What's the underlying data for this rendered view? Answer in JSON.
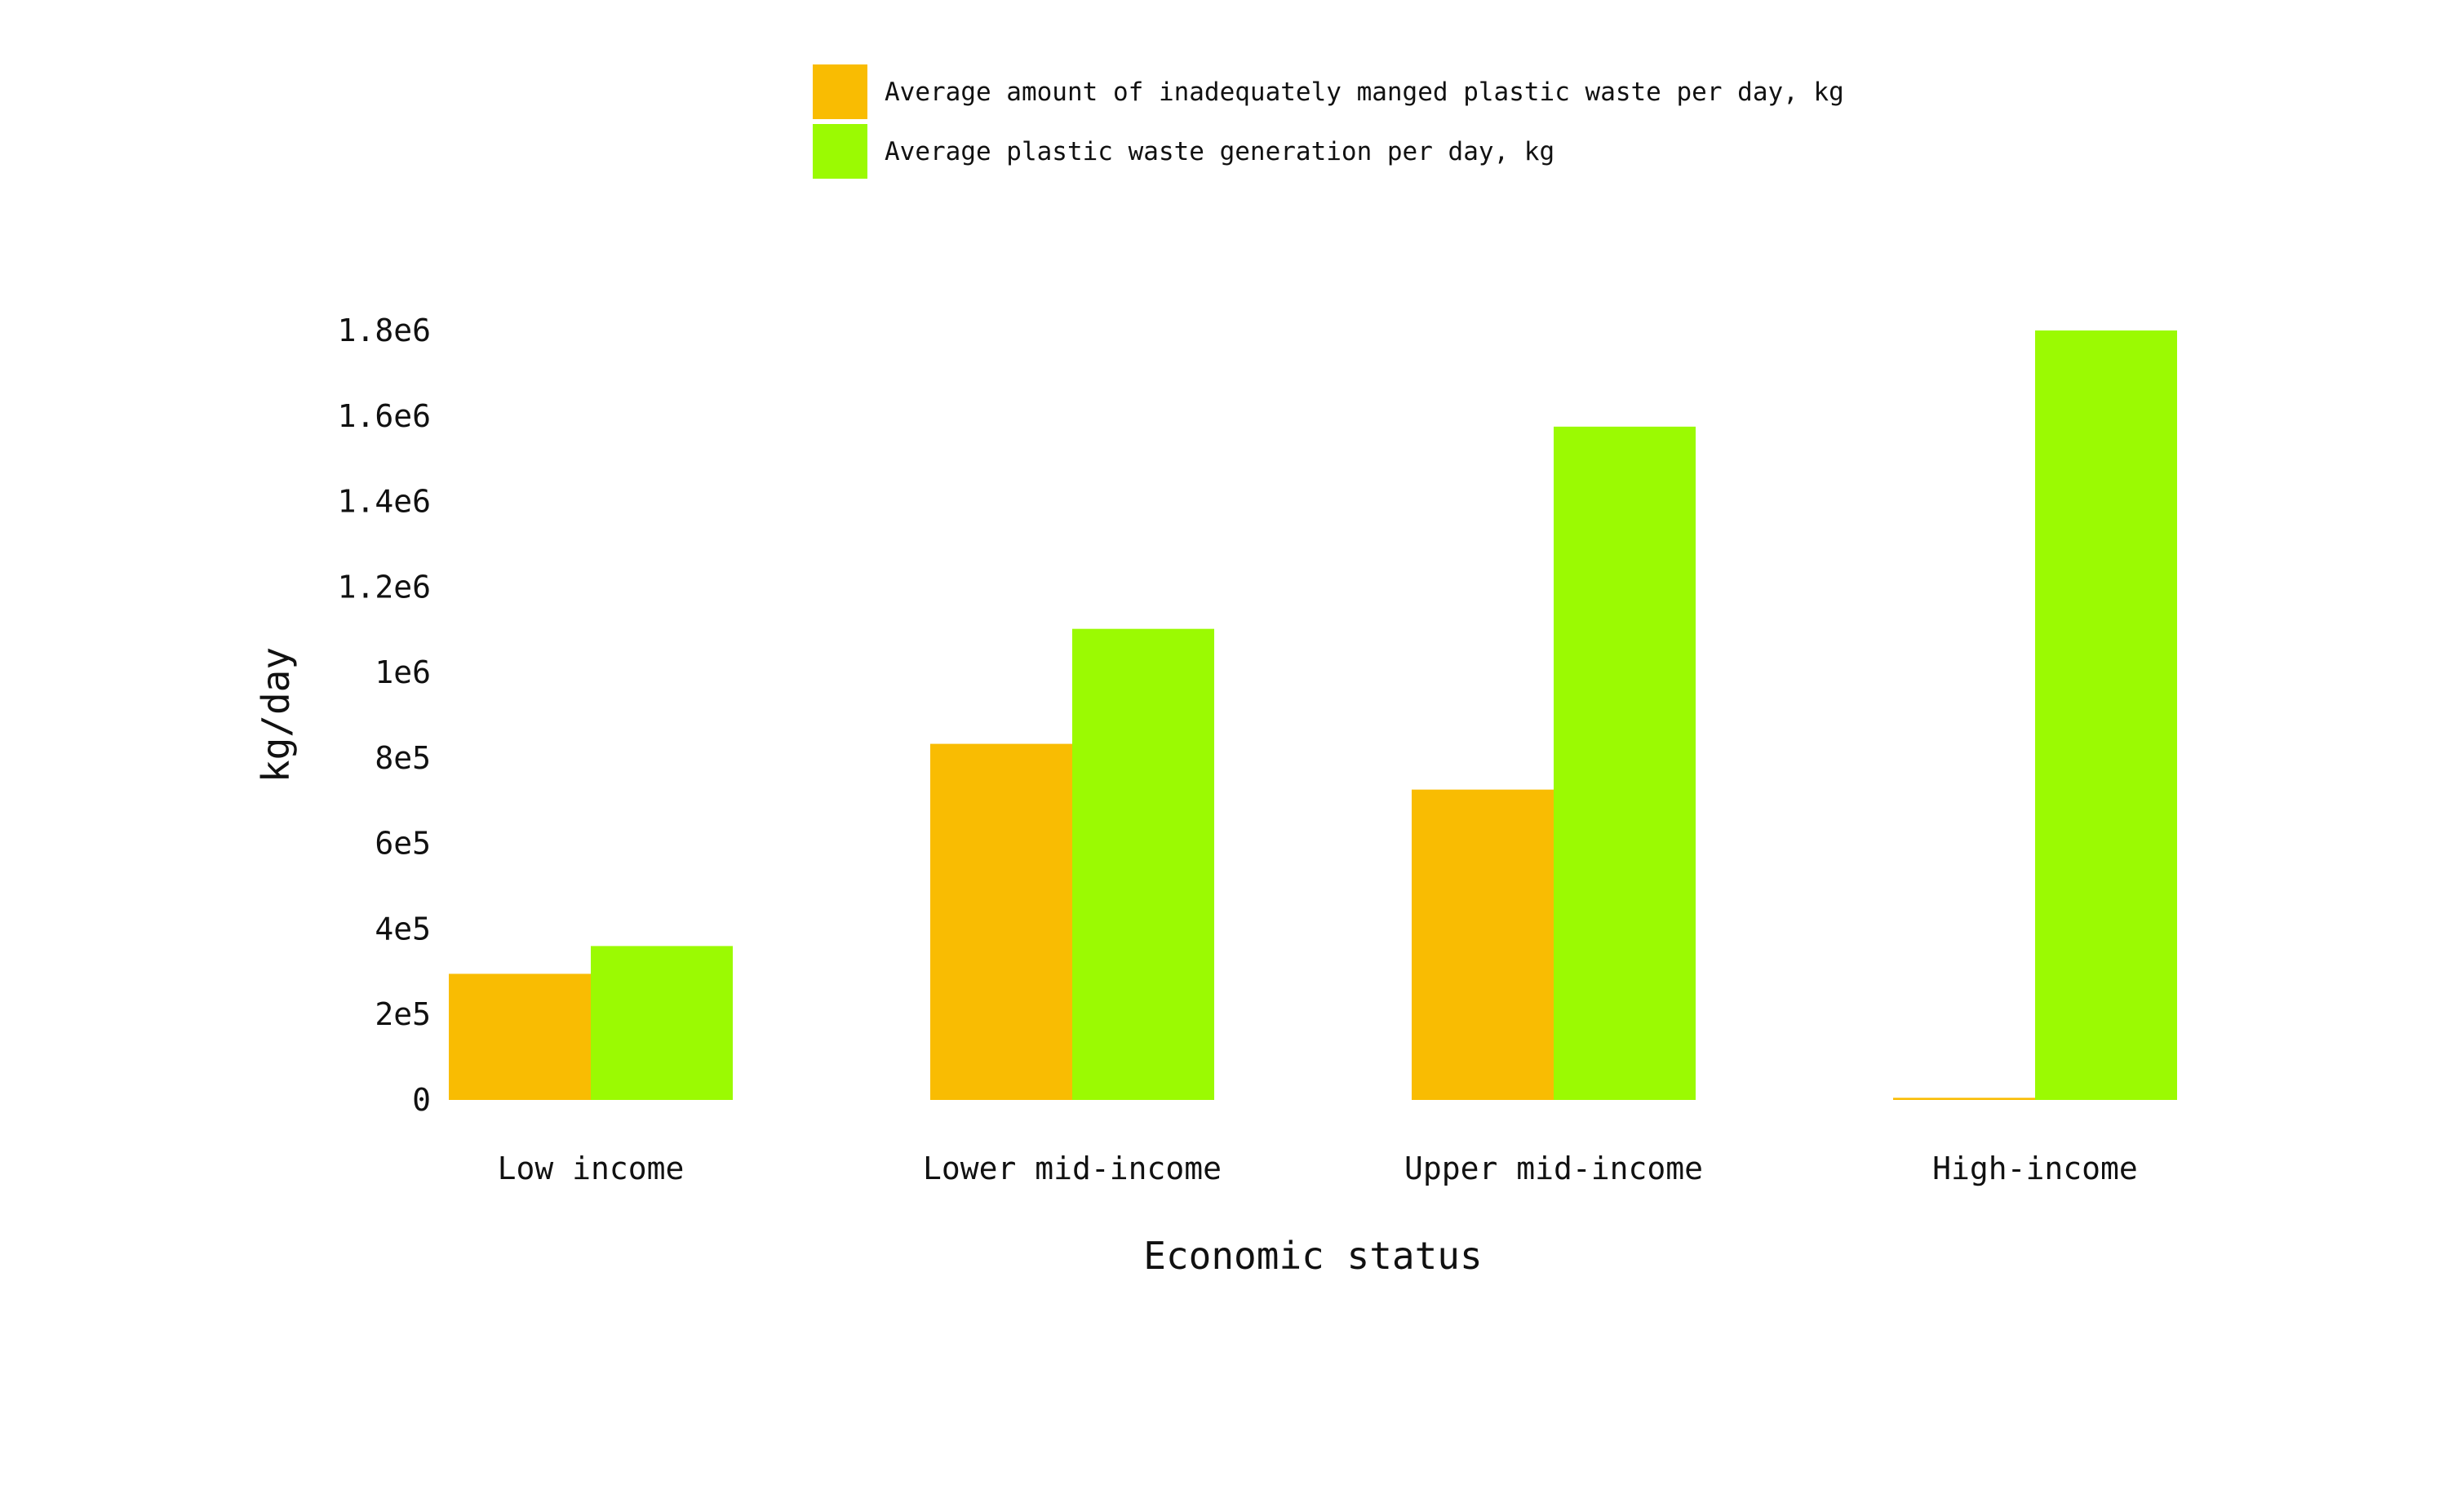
{
  "chart_data": {
    "type": "bar",
    "categories": [
      "Low income",
      "Lower mid-income",
      "Upper mid-income",
      "High-income"
    ],
    "series": [
      {
        "name": "Average amount of inadequately manged plastic waste per day, kg",
        "color": "#F9BC02",
        "values": [
          295000,
          833000,
          726000,
          5000
        ]
      },
      {
        "name": "Average plastic waste generation per day, kg",
        "color": "#9BFA02",
        "values": [
          360000,
          1102000,
          1575000,
          1800000
        ]
      }
    ],
    "title": "",
    "xlabel": "Economic status",
    "ylabel": "kg/day",
    "ylim": [
      0,
      1800000
    ],
    "yticks": [
      {
        "value": 0,
        "label": "0"
      },
      {
        "value": 200000,
        "label": "2e5"
      },
      {
        "value": 400000,
        "label": "4e5"
      },
      {
        "value": 600000,
        "label": "6e5"
      },
      {
        "value": 800000,
        "label": "8e5"
      },
      {
        "value": 1000000,
        "label": "1e6"
      },
      {
        "value": 1200000,
        "label": "1.2e6"
      },
      {
        "value": 1400000,
        "label": "1.4e6"
      },
      {
        "value": 1600000,
        "label": "1.6e6"
      },
      {
        "value": 1800000,
        "label": "1.8e6"
      }
    ],
    "grid": false,
    "legend_position": "top-center"
  }
}
